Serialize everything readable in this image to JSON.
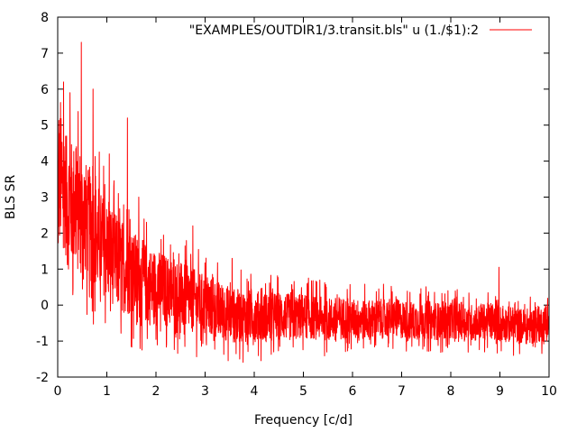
{
  "chart_data": {
    "type": "line",
    "title": "",
    "xlabel": "Frequency [c/d]",
    "ylabel": "BLS SR",
    "xlim": [
      0,
      10
    ],
    "ylim": [
      -2,
      8
    ],
    "xticks": [
      0,
      1,
      2,
      3,
      4,
      5,
      6,
      7,
      8,
      9,
      10
    ],
    "yticks": [
      -2,
      -1,
      0,
      1,
      2,
      3,
      4,
      5,
      6,
      7,
      8
    ],
    "grid": false,
    "legend_position": "top-right",
    "series": [
      {
        "name": "\"EXAMPLES/OUTDIR1/3.transit.bls\" u (1./$1):2",
        "color": "#ff0000",
        "x": [
          0.0,
          0.05,
          0.1,
          0.15,
          0.2,
          0.25,
          0.3,
          0.35,
          0.4,
          0.45,
          0.5,
          0.55,
          0.6,
          0.65,
          0.7,
          0.75,
          0.8,
          0.85,
          0.9,
          0.95,
          1.0,
          1.1,
          1.2,
          1.3,
          1.4,
          1.5,
          1.6,
          1.7,
          1.8,
          1.9,
          2.0,
          2.2,
          2.4,
          2.6,
          2.8,
          3.0,
          3.2,
          3.4,
          3.6,
          3.8,
          4.0,
          4.25,
          4.5,
          4.75,
          5.0,
          5.25,
          5.5,
          5.75,
          6.0,
          6.25,
          6.5,
          6.75,
          7.0,
          7.25,
          7.5,
          7.75,
          8.0,
          8.25,
          8.5,
          8.75,
          9.0,
          9.25,
          9.5,
          9.75,
          10.0
        ],
        "y": [
          2.8,
          3.6,
          3.1,
          3.4,
          2.6,
          3.0,
          2.7,
          2.9,
          2.5,
          2.8,
          2.4,
          2.6,
          2.2,
          2.3,
          2.0,
          2.1,
          1.8,
          1.9,
          1.6,
          1.7,
          1.5,
          1.4,
          1.2,
          1.1,
          1.0,
          0.9,
          0.8,
          0.7,
          0.6,
          0.5,
          0.5,
          0.4,
          0.3,
          0.2,
          0.1,
          0.0,
          -0.1,
          -0.2,
          -0.3,
          -0.3,
          -0.3,
          -0.35,
          -0.3,
          -0.35,
          -0.3,
          -0.35,
          -0.4,
          -0.35,
          -0.4,
          -0.4,
          -0.4,
          -0.35,
          -0.4,
          -0.45,
          -0.4,
          -0.45,
          -0.4,
          -0.45,
          -0.5,
          -0.45,
          -0.5,
          -0.55,
          -0.6,
          -0.55,
          -0.5
        ],
        "peaks": [
          {
            "x": 0.12,
            "y": 6.2
          },
          {
            "x": 0.25,
            "y": 5.9
          },
          {
            "x": 0.38,
            "y": 4.4
          },
          {
            "x": 0.48,
            "y": 7.3
          },
          {
            "x": 0.72,
            "y": 6.0
          },
          {
            "x": 1.05,
            "y": 4.2
          },
          {
            "x": 1.42,
            "y": 5.2
          },
          {
            "x": 1.65,
            "y": 3.0
          },
          {
            "x": 2.75,
            "y": 2.2
          },
          {
            "x": 3.55,
            "y": 1.3
          },
          {
            "x": 8.98,
            "y": 1.05
          }
        ],
        "noise_amplitude": "decreasing from about 1.8 at low frequency to about 0.6 at high frequency"
      }
    ]
  }
}
